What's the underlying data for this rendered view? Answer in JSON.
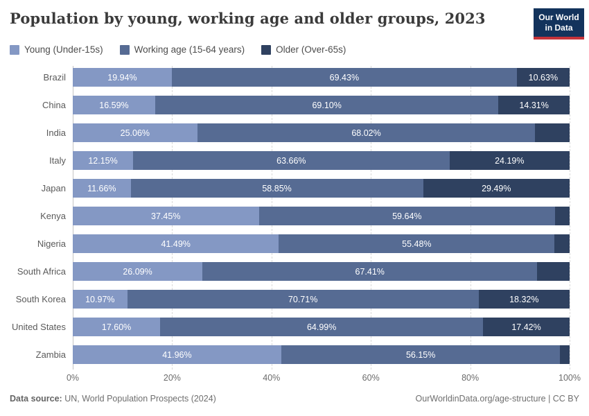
{
  "header": {
    "logo": {
      "line1": "Our World",
      "line2": "in Data",
      "bg": "#13335c",
      "accent": "#c5333a"
    }
  },
  "footer": {
    "source_label": "Data source:",
    "source_text": " UN, World Population Prospects (2024)",
    "link_text": "OurWorldinData.org/age-structure | CC BY"
  },
  "chart_data": {
    "type": "bar",
    "variant": "horizontal-stacked",
    "title": "Population by young, working age and older groups, 2023",
    "xlabel": "",
    "ylabel": "",
    "xlim": [
      0,
      100
    ],
    "grid": "dashed-vertical",
    "legend_position": "top-left",
    "series": [
      {
        "name": "Young (Under-15s)",
        "color": "#8498c4"
      },
      {
        "name": "Working age (15-64 years)",
        "color": "#566b93"
      },
      {
        "name": "Older (Over-65s)",
        "color": "#2f4160"
      }
    ],
    "rows": [
      {
        "country": "Brazil",
        "values": [
          19.94,
          69.43,
          10.63
        ],
        "labels": [
          "19.94%",
          "69.43%",
          "10.63%"
        ]
      },
      {
        "country": "China",
        "values": [
          16.59,
          69.1,
          14.31
        ],
        "labels": [
          "16.59%",
          "69.10%",
          "14.31%"
        ]
      },
      {
        "country": "India",
        "values": [
          25.06,
          68.02,
          6.92
        ],
        "labels": [
          "25.06%",
          "68.02%",
          ""
        ]
      },
      {
        "country": "Italy",
        "values": [
          12.15,
          63.66,
          24.19
        ],
        "labels": [
          "12.15%",
          "63.66%",
          "24.19%"
        ]
      },
      {
        "country": "Japan",
        "values": [
          11.66,
          58.85,
          29.49
        ],
        "labels": [
          "11.66%",
          "58.85%",
          "29.49%"
        ]
      },
      {
        "country": "Kenya",
        "values": [
          37.45,
          59.64,
          2.91
        ],
        "labels": [
          "37.45%",
          "59.64%",
          ""
        ]
      },
      {
        "country": "Nigeria",
        "values": [
          41.49,
          55.48,
          3.03
        ],
        "labels": [
          "41.49%",
          "55.48%",
          ""
        ]
      },
      {
        "country": "South Africa",
        "values": [
          26.09,
          67.41,
          6.5
        ],
        "labels": [
          "26.09%",
          "67.41%",
          ""
        ]
      },
      {
        "country": "South Korea",
        "values": [
          10.97,
          70.71,
          18.32
        ],
        "labels": [
          "10.97%",
          "70.71%",
          "18.32%"
        ]
      },
      {
        "country": "United States",
        "values": [
          17.6,
          64.99,
          17.42
        ],
        "labels": [
          "17.60%",
          "64.99%",
          "17.42%"
        ]
      },
      {
        "country": "Zambia",
        "values": [
          41.96,
          56.15,
          1.89
        ],
        "labels": [
          "41.96%",
          "56.15%",
          ""
        ]
      }
    ],
    "x_ticks": [
      {
        "value": 0,
        "label": "0%"
      },
      {
        "value": 20,
        "label": "20%"
      },
      {
        "value": 40,
        "label": "40%"
      },
      {
        "value": 60,
        "label": "60%"
      },
      {
        "value": 80,
        "label": "80%"
      },
      {
        "value": 100,
        "label": "100%"
      }
    ]
  }
}
